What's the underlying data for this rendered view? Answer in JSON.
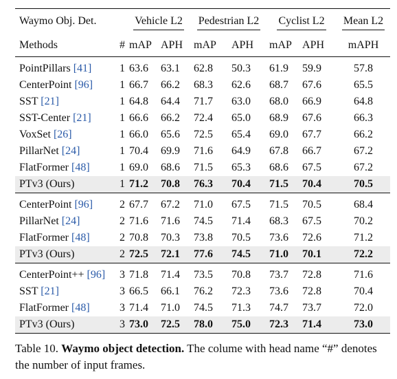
{
  "table": {
    "dataset_label": "Waymo Obj. Det.",
    "groups": [
      "Vehicle L2",
      "Pedestrian L2",
      "Cyclist L2",
      "Mean L2"
    ],
    "methods_label": "Methods",
    "frames_label": "#",
    "subheaders": [
      "mAP",
      "APH",
      "mAP",
      "APH",
      "mAP",
      "APH",
      "mAPH"
    ],
    "sections": [
      [
        {
          "name": "PointPillars ",
          "ref": "[41]",
          "frames": "1",
          "values": [
            "63.6",
            "63.1",
            "62.8",
            "50.3",
            "61.9",
            "59.9",
            "57.8"
          ],
          "ours": false
        },
        {
          "name": "CenterPoint ",
          "ref": "[96]",
          "frames": "1",
          "values": [
            "66.7",
            "66.2",
            "68.3",
            "62.6",
            "68.7",
            "67.6",
            "65.5"
          ],
          "ours": false
        },
        {
          "name": "SST ",
          "ref": "[21]",
          "frames": "1",
          "values": [
            "64.8",
            "64.4",
            "71.7",
            "63.0",
            "68.0",
            "66.9",
            "64.8"
          ],
          "ours": false
        },
        {
          "name": "SST-Center ",
          "ref": "[21]",
          "frames": "1",
          "values": [
            "66.6",
            "66.2",
            "72.4",
            "65.0",
            "68.9",
            "67.6",
            "66.3"
          ],
          "ours": false
        },
        {
          "name": "VoxSet ",
          "ref": "[26]",
          "frames": "1",
          "values": [
            "66.0",
            "65.6",
            "72.5",
            "65.4",
            "69.0",
            "67.7",
            "66.2"
          ],
          "ours": false
        },
        {
          "name": "PillarNet ",
          "ref": "[24]",
          "frames": "1",
          "values": [
            "70.4",
            "69.9",
            "71.6",
            "64.9",
            "67.8",
            "66.7",
            "67.2"
          ],
          "ours": false
        },
        {
          "name": "FlatFormer ",
          "ref": "[48]",
          "frames": "1",
          "values": [
            "69.0",
            "68.6",
            "71.5",
            "65.3",
            "68.6",
            "67.5",
            "67.2"
          ],
          "ours": false
        },
        {
          "name": "PTv3 (Ours)",
          "ref": "",
          "frames": "1",
          "values": [
            "71.2",
            "70.8",
            "76.3",
            "70.4",
            "71.5",
            "70.4",
            "70.5"
          ],
          "ours": true
        }
      ],
      [
        {
          "name": "CenterPoint ",
          "ref": "[96]",
          "frames": "2",
          "values": [
            "67.7",
            "67.2",
            "71.0",
            "67.5",
            "71.5",
            "70.5",
            "68.4"
          ],
          "ours": false
        },
        {
          "name": "PillarNet ",
          "ref": "[24]",
          "frames": "2",
          "values": [
            "71.6",
            "71.6",
            "74.5",
            "71.4",
            "68.3",
            "67.5",
            "70.2"
          ],
          "ours": false
        },
        {
          "name": "FlatFormer ",
          "ref": "[48]",
          "frames": "2",
          "values": [
            "70.8",
            "70.3",
            "73.8",
            "70.5",
            "73.6",
            "72.6",
            "71.2"
          ],
          "ours": false
        },
        {
          "name": "PTv3 (Ours)",
          "ref": "",
          "frames": "2",
          "values": [
            "72.5",
            "72.1",
            "77.6",
            "74.5",
            "71.0",
            "70.1",
            "72.2"
          ],
          "ours": true
        }
      ],
      [
        {
          "name": "CenterPoint++ ",
          "ref": "[96]",
          "frames": "3",
          "values": [
            "71.8",
            "71.4",
            "73.5",
            "70.8",
            "73.7",
            "72.8",
            "71.6"
          ],
          "ours": false
        },
        {
          "name": "SST ",
          "ref": "[21]",
          "frames": "3",
          "values": [
            "66.5",
            "66.1",
            "76.2",
            "72.3",
            "73.6",
            "72.8",
            "70.4"
          ],
          "ours": false
        },
        {
          "name": "FlatFormer ",
          "ref": "[48]",
          "frames": "3",
          "values": [
            "71.4",
            "71.0",
            "74.5",
            "71.3",
            "74.7",
            "73.7",
            "72.0"
          ],
          "ours": false
        },
        {
          "name": "PTv3 (Ours)",
          "ref": "",
          "frames": "3",
          "values": [
            "73.0",
            "72.5",
            "78.0",
            "75.0",
            "72.3",
            "71.4",
            "73.0"
          ],
          "ours": true
        }
      ]
    ]
  },
  "caption": {
    "label": "Table 10. ",
    "title": "Waymo object detection.",
    "text": " The colume with head name “#” denotes the number of input frames."
  }
}
